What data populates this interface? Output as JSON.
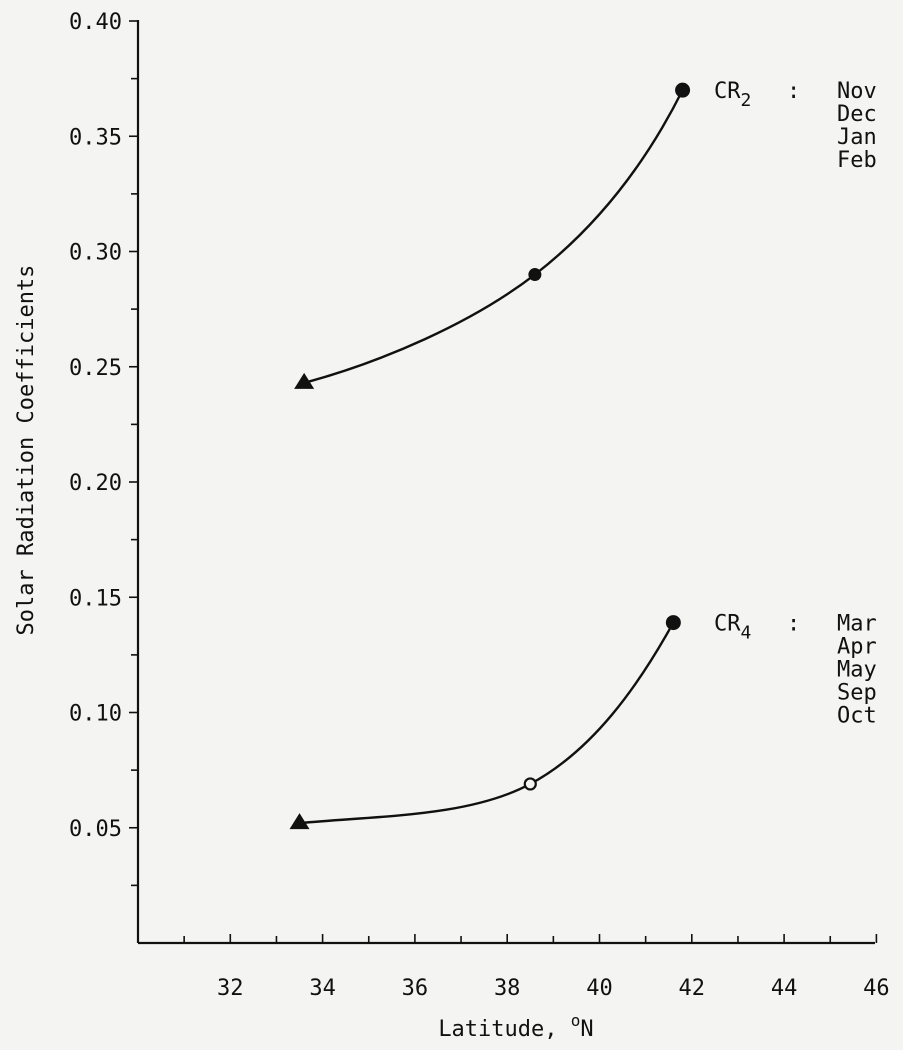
{
  "chart_data": {
    "type": "line",
    "xlabel": "Latitude,",
    "xlabel_unit_sup": "o",
    "xlabel_unit": "N",
    "ylabel": "Solar Radiation Coefficients",
    "xlim": [
      30,
      46
    ],
    "ylim": [
      0.0,
      0.4
    ],
    "x_ticks": [
      32,
      34,
      36,
      38,
      40,
      42,
      44,
      46
    ],
    "x_tick_labels": [
      "32",
      "34",
      "36",
      "38",
      "40",
      "42",
      "44",
      "46"
    ],
    "y_ticks": [
      0.05,
      0.1,
      0.15,
      0.2,
      0.25,
      0.3,
      0.35,
      0.4
    ],
    "y_tick_labels": [
      "0.05",
      "0.10",
      "0.15",
      "0.20",
      "0.25",
      "0.30",
      "0.35",
      "0.40"
    ],
    "grid": false,
    "series": [
      {
        "name": "CR2",
        "points": [
          {
            "x": 33.6,
            "y": 0.243,
            "marker": "triangle-filled"
          },
          {
            "x": 38.6,
            "y": 0.29,
            "marker": "circle-filled"
          },
          {
            "x": 41.8,
            "y": 0.37,
            "marker": "circle-filled"
          }
        ],
        "label_main": "CR",
        "label_sub": "2",
        "label_sep": ":",
        "months": [
          "Nov",
          "Dec",
          "Jan",
          "Feb"
        ]
      },
      {
        "name": "CR4",
        "points": [
          {
            "x": 33.5,
            "y": 0.052,
            "marker": "triangle-filled"
          },
          {
            "x": 38.5,
            "y": 0.069,
            "marker": "circle-open"
          },
          {
            "x": 41.6,
            "y": 0.139,
            "marker": "circle-filled"
          }
        ],
        "label_main": "CR",
        "label_sub": "4",
        "label_sep": ":",
        "months": [
          "Mar",
          "Apr",
          "May",
          "Sep",
          "Oct"
        ]
      }
    ]
  }
}
